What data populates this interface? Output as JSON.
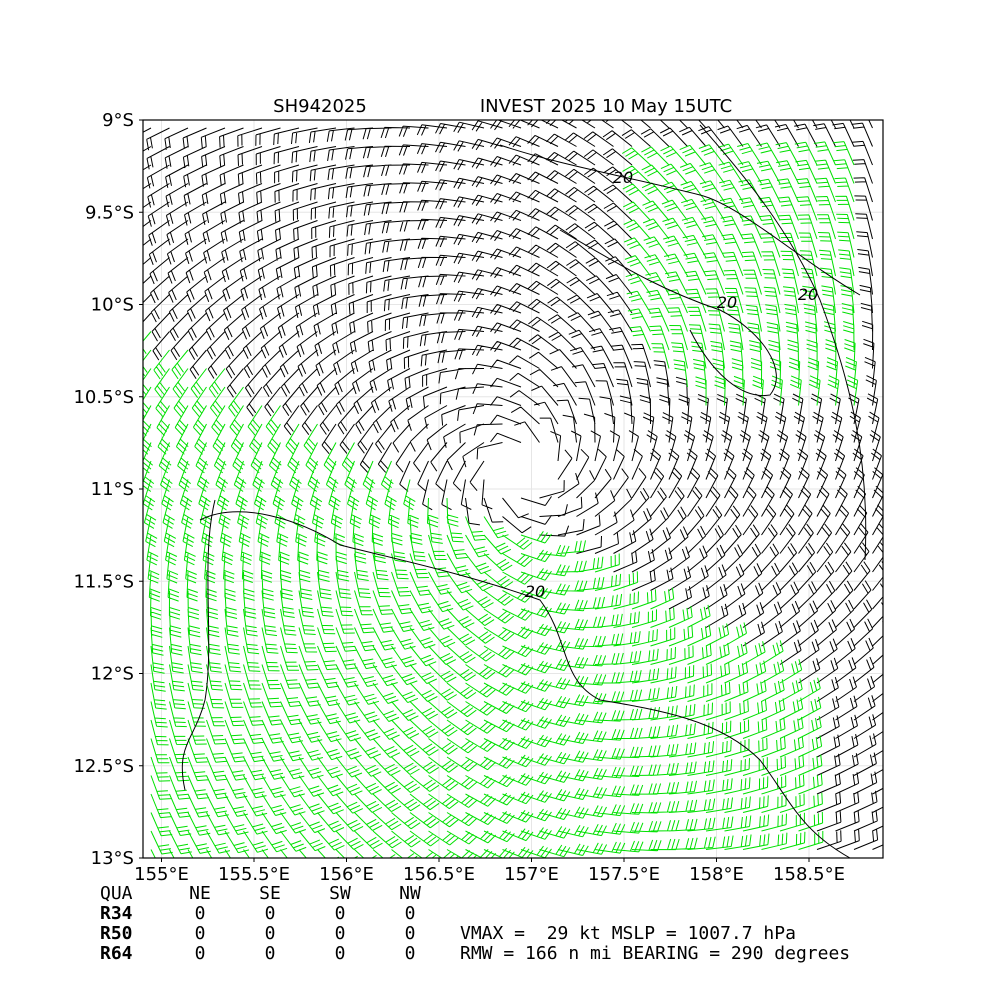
{
  "title_left": "SH942025",
  "title_right": "INVEST 2025 10 May 15UTC",
  "xlim": [
    154.9,
    158.9
  ],
  "ylim": [
    -13,
    -9
  ],
  "xticks": [
    {
      "value": 155,
      "label": "155°E"
    },
    {
      "value": 155.5,
      "label": "155.5°E"
    },
    {
      "value": 156,
      "label": "156°E"
    },
    {
      "value": 156.5,
      "label": "156.5°E"
    },
    {
      "value": 157,
      "label": "157°E"
    },
    {
      "value": 157.5,
      "label": "157.5°E"
    },
    {
      "value": 158,
      "label": "158°E"
    },
    {
      "value": 158.5,
      "label": "158.5°E"
    }
  ],
  "yticks": [
    {
      "value": -9,
      "label": "9°S"
    },
    {
      "value": -9.5,
      "label": "9.5°S"
    },
    {
      "value": -10,
      "label": "10°S"
    },
    {
      "value": -10.5,
      "label": "10.5°S"
    },
    {
      "value": -11,
      "label": "11°S"
    },
    {
      "value": -11.5,
      "label": "11.5°S"
    },
    {
      "value": -12,
      "label": "12°S"
    },
    {
      "value": -12.5,
      "label": "12.5°S"
    },
    {
      "value": -13,
      "label": "13°S"
    }
  ],
  "contour_labels": [
    "20",
    "20",
    "20",
    "20"
  ],
  "table": {
    "header": [
      "QUA",
      "NE",
      "SE",
      "SW",
      "NW"
    ],
    "rows": [
      [
        "R34",
        "0",
        "0",
        "0",
        "0"
      ],
      [
        "R50",
        "0",
        "0",
        "0",
        "0"
      ],
      [
        "R64",
        "0",
        "0",
        "0",
        "0"
      ]
    ]
  },
  "info": [
    "VMAX =  29 kt MSLP = 1007.7 hPa",
    "RMW = 166 n mi BEARING = 290 degrees"
  ]
}
